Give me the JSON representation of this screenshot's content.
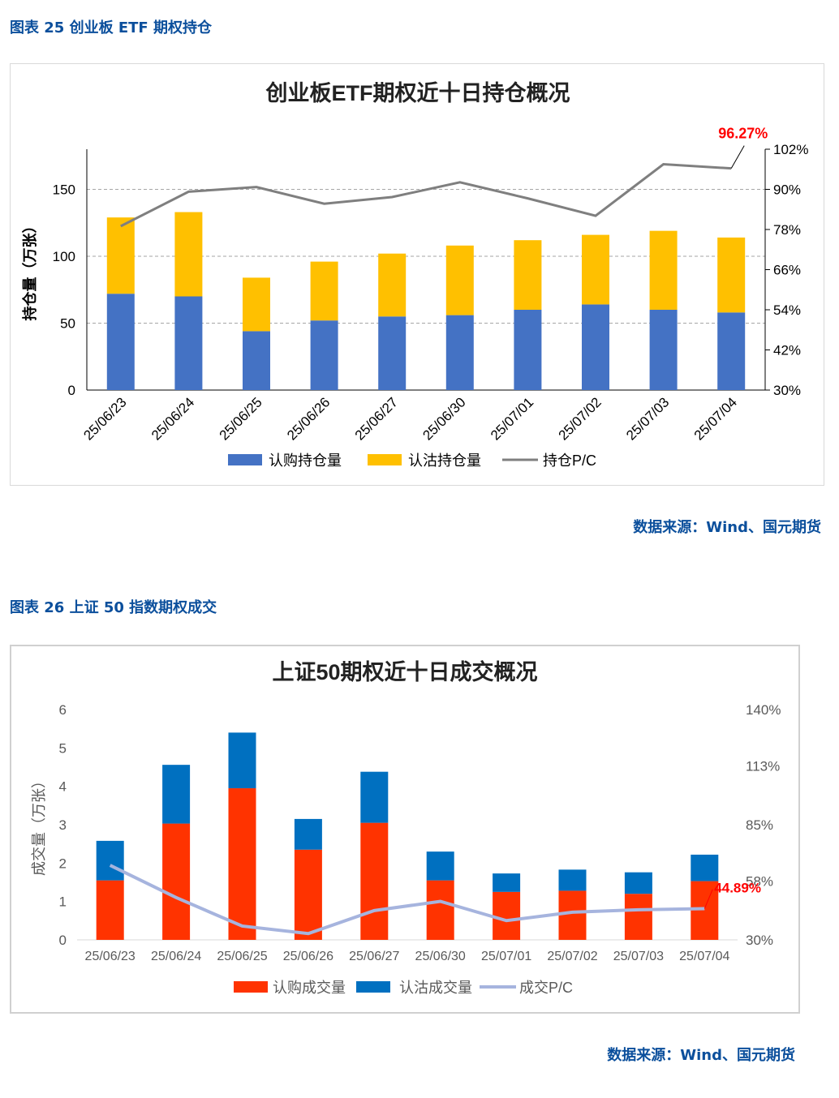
{
  "section1": {
    "caption": "图表 25 创业板 ETF 期权持仓",
    "source": "数据来源：Wind、国元期货"
  },
  "section2": {
    "caption": "图表 26 上证 50 指数期权成交",
    "source": "数据来源：Wind、国元期货"
  },
  "colors": {
    "caption_blue": "#0b4f9c",
    "chart1_call": "#4472c4",
    "chart1_put": "#ffc000",
    "chart1_line": "#7f7f7f",
    "chart2_call": "#ff3300",
    "chart2_put": "#0070c0",
    "chart2_line": "#a6b4de",
    "annotation_red": "#ff0000"
  },
  "chart_data": [
    {
      "type": "bar",
      "stacked": true,
      "title": "创业板ETF期权近十日持仓概况",
      "ylabel": "持仓量（万张）",
      "y2label": "",
      "categories": [
        "25/06/23",
        "25/06/24",
        "25/06/25",
        "25/06/26",
        "25/06/27",
        "25/06/30",
        "25/07/01",
        "25/07/02",
        "25/07/03",
        "25/07/04"
      ],
      "ylim": [
        0,
        180
      ],
      "yticks": [
        "0",
        "50",
        "100",
        "150"
      ],
      "y2lim": [
        30,
        102
      ],
      "y2ticks": [
        "30%",
        "42%",
        "54%",
        "66%",
        "78%",
        "90%",
        "102%"
      ],
      "grid": true,
      "legend_position": "bottom",
      "series": [
        {
          "name": "认购持仓量",
          "axis": "left",
          "kind": "bar",
          "values": [
            72,
            70,
            44,
            52,
            55,
            56,
            60,
            64,
            60,
            58
          ]
        },
        {
          "name": "认沽持仓量",
          "axis": "left",
          "kind": "bar",
          "values": [
            57,
            63,
            40,
            44,
            47,
            52,
            52,
            52,
            59,
            56
          ]
        },
        {
          "name": "持仓P/C",
          "axis": "right",
          "kind": "line",
          "values": [
            79,
            89.3,
            90.7,
            85.7,
            87.7,
            92.1,
            87.3,
            82.1,
            97.5,
            96.27
          ]
        }
      ],
      "annotation": {
        "label": "96.27%",
        "category": "25/07/04"
      }
    },
    {
      "type": "bar",
      "stacked": true,
      "title": "上证50期权近十日成交概况",
      "ylabel": "成交量（万张）",
      "y2label": "",
      "categories": [
        "25/06/23",
        "25/06/24",
        "25/06/25",
        "25/06/26",
        "25/06/27",
        "25/06/30",
        "25/07/01",
        "25/07/02",
        "25/07/03",
        "25/07/04"
      ],
      "ylim": [
        0,
        6
      ],
      "yticks": [
        "0",
        "1",
        "2",
        "3",
        "4",
        "5",
        "6"
      ],
      "y2lim": [
        30,
        140
      ],
      "y2ticks": [
        "30%",
        "58%",
        "85%",
        "113%",
        "140%"
      ],
      "grid": false,
      "legend_position": "bottom",
      "series": [
        {
          "name": "认购成交量",
          "axis": "left",
          "kind": "bar",
          "values": [
            1.55,
            3.03,
            3.95,
            2.35,
            3.05,
            1.55,
            1.25,
            1.28,
            1.2,
            1.53
          ]
        },
        {
          "name": "认沽成交量",
          "axis": "left",
          "kind": "bar",
          "values": [
            1.03,
            1.53,
            1.45,
            0.8,
            1.33,
            0.75,
            0.48,
            0.55,
            0.56,
            0.69
          ]
        },
        {
          "name": "成交P/C",
          "axis": "right",
          "kind": "line",
          "values": [
            65.6,
            50.2,
            36.6,
            33,
            44,
            48.4,
            39.2,
            43.2,
            44.4,
            44.89
          ]
        }
      ],
      "annotation": {
        "label": "44.89%",
        "category": "25/07/04"
      }
    }
  ]
}
